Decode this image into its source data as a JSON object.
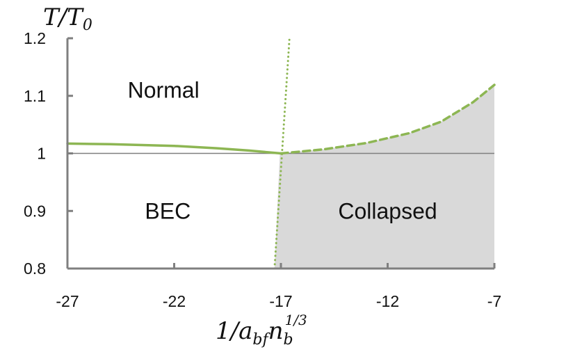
{
  "chart_data": {
    "type": "line",
    "title": "",
    "ylabel": "T/T_0",
    "xlabel": "1/a_bf n_b^1/3",
    "xlim": [
      -27,
      -7
    ],
    "ylim": [
      0.8,
      1.2
    ],
    "x_ticks": [
      "-27",
      "-22",
      "-17",
      "-12",
      "-7"
    ],
    "y_ticks": [
      "1.2",
      "1.1",
      "1",
      "0.9",
      "0.8"
    ],
    "grid": false,
    "reference_line": {
      "y": 1.0,
      "color": "#7f7f7f"
    },
    "series": [
      {
        "style": "solid",
        "color": "#8db653",
        "points": [
          [
            -27,
            1.017
          ],
          [
            -25,
            1.016
          ],
          [
            -22,
            1.013
          ],
          [
            -20,
            1.009
          ],
          [
            -18.5,
            1.005
          ],
          [
            -17,
            1.0
          ]
        ]
      },
      {
        "style": "dashed",
        "color": "#8db653",
        "points": [
          [
            -17,
            1.0
          ],
          [
            -15,
            1.007
          ],
          [
            -13,
            1.018
          ],
          [
            -11,
            1.035
          ],
          [
            -9.5,
            1.055
          ],
          [
            -8,
            1.089
          ],
          [
            -7,
            1.119
          ]
        ]
      },
      {
        "style": "dotted",
        "color": "#8db653",
        "points": [
          [
            -17.3,
            0.8
          ],
          [
            -16.6,
            1.2
          ]
        ]
      }
    ],
    "shaded_region": {
      "color": "#d9d9d9",
      "boundary": [
        [
          -17.3,
          0.8
        ],
        [
          -17.05,
          1.0
        ],
        [
          -15,
          1.007
        ],
        [
          -13,
          1.018
        ],
        [
          -11,
          1.035
        ],
        [
          -9.5,
          1.055
        ],
        [
          -8,
          1.089
        ],
        [
          -7,
          1.119
        ],
        [
          -7,
          0.8
        ]
      ]
    },
    "region_labels": [
      {
        "key": "normal",
        "text": "Normal",
        "x": -22.5,
        "y": 1.11
      },
      {
        "key": "bec",
        "text": "BEC",
        "x": -22.3,
        "y": 0.9
      },
      {
        "key": "collapsed",
        "text": "Collapsed",
        "x": -12,
        "y": 0.9
      }
    ]
  }
}
